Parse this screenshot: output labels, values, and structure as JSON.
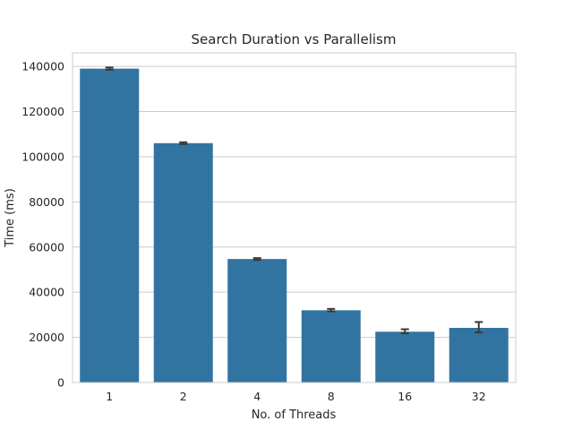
{
  "chart_data": {
    "type": "bar",
    "title": "Search Duration vs Parallelism",
    "xlabel": "No. of Threads",
    "ylabel": "Time (ms)",
    "categories": [
      "1",
      "2",
      "4",
      "8",
      "16",
      "32"
    ],
    "values": [
      139000,
      106000,
      54700,
      32000,
      22500,
      24200
    ],
    "error_low": [
      138500,
      105600,
      54300,
      31500,
      21800,
      22200
    ],
    "error_high": [
      139500,
      106400,
      55100,
      32600,
      23600,
      26800
    ],
    "ylim": [
      0,
      146000
    ],
    "yticks": [
      0,
      20000,
      40000,
      60000,
      80000,
      100000,
      120000,
      140000
    ],
    "grid": true,
    "colors": {
      "bar": "#3274a1",
      "grid": "#cccccc",
      "error": "#3a3a3a",
      "axes": "#cccccc"
    }
  }
}
